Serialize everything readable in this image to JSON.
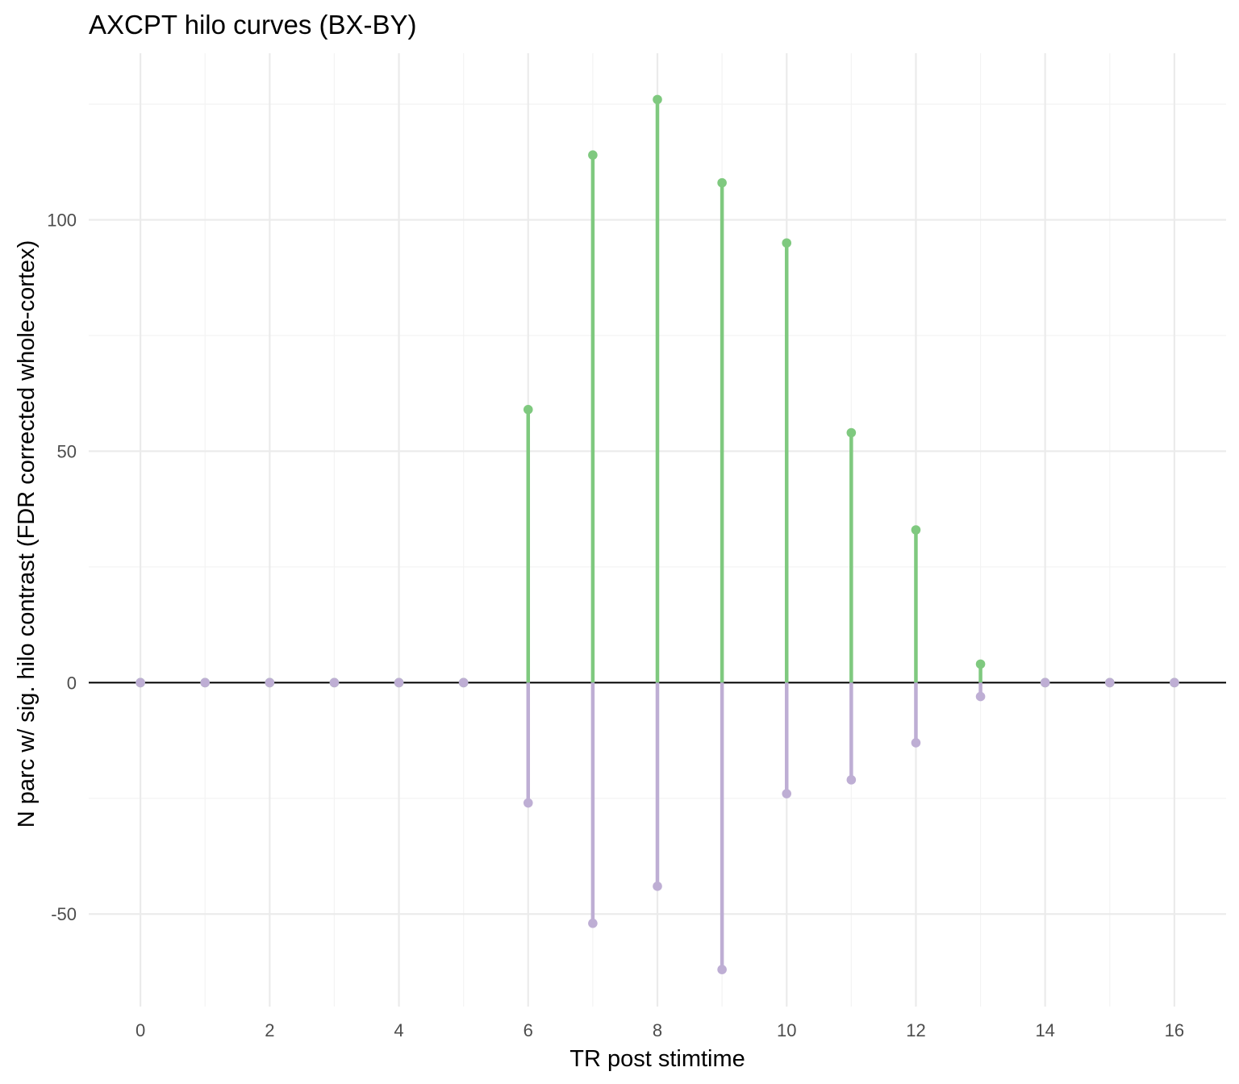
{
  "chart_data": {
    "type": "lollipop",
    "title": "AXCPT hilo curves (BX-BY)",
    "xlabel": "TR post stimtime",
    "ylabel": "N parc w/ sig. hilo contrast (FDR corrected whole-cortex)",
    "xlim": [
      -0.8,
      16.8
    ],
    "ylim": [
      -70,
      136
    ],
    "x_ticks": [
      0,
      2,
      4,
      6,
      8,
      10,
      12,
      14,
      16
    ],
    "y_ticks": [
      -50,
      0,
      50,
      100
    ],
    "grid": true,
    "x": [
      0,
      1,
      2,
      3,
      4,
      5,
      6,
      7,
      8,
      9,
      10,
      11,
      12,
      13,
      14,
      15,
      16
    ],
    "series": [
      {
        "color": "#7fc97f",
        "values": [
          0,
          0,
          0,
          0,
          0,
          0,
          59,
          114,
          126,
          108,
          95,
          54,
          33,
          4,
          0,
          0,
          0
        ]
      },
      {
        "color": "#beaed4",
        "values": [
          0,
          0,
          0,
          0,
          0,
          0,
          -26,
          -52,
          -44,
          -62,
          -24,
          -21,
          -13,
          -3,
          0,
          0,
          0
        ]
      }
    ]
  }
}
